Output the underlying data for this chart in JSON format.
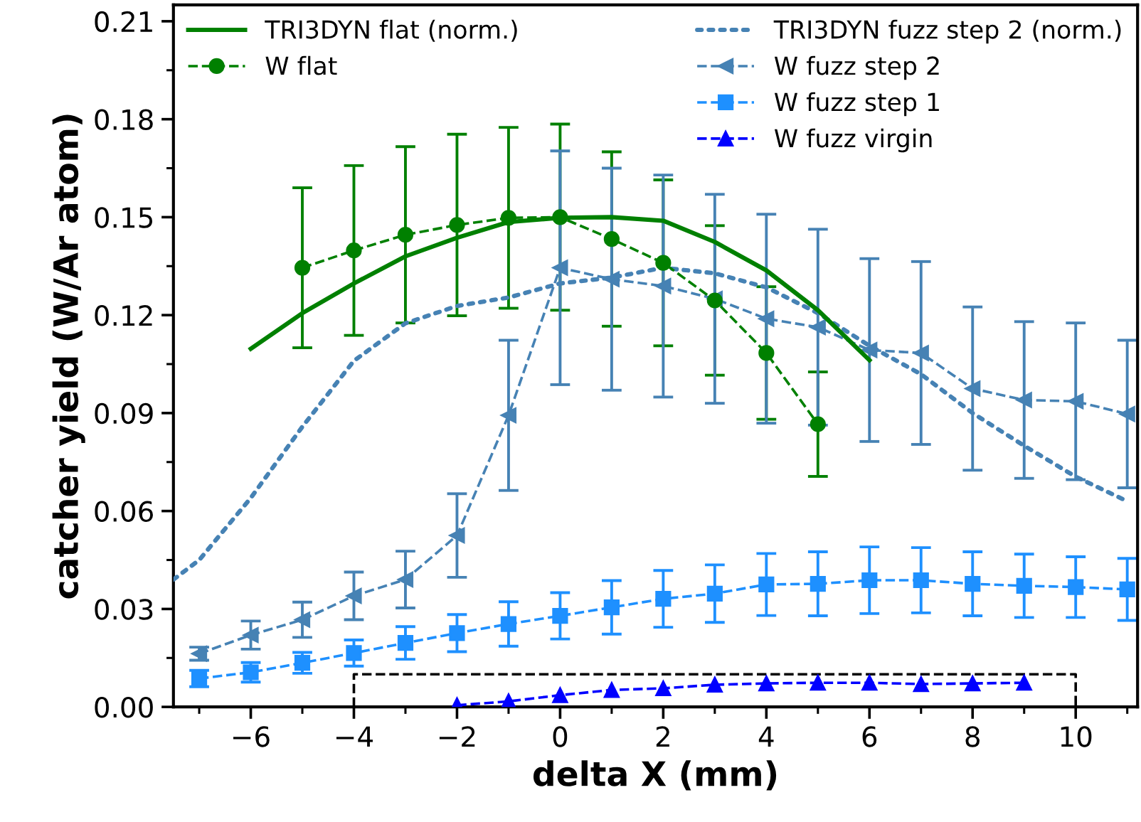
{
  "chart_data": {
    "type": "line",
    "xlabel": "delta X (mm)",
    "ylabel": "catcher yield (W/Ar atom)",
    "xlim": [
      -7.5,
      11.2
    ],
    "ylim": [
      0,
      0.215
    ],
    "xticks": [
      {
        "value": -7,
        "label": null
      },
      {
        "value": -6,
        "label": "−6"
      },
      {
        "value": -5,
        "label": null
      },
      {
        "value": -4,
        "label": "−4"
      },
      {
        "value": -3,
        "label": null
      },
      {
        "value": -2,
        "label": "−2"
      },
      {
        "value": -1,
        "label": null
      },
      0,
      {
        "value": 1,
        "label": null
      },
      2,
      {
        "value": 3,
        "label": null
      },
      4,
      {
        "value": 5,
        "label": null
      },
      6,
      {
        "value": 7,
        "label": null
      },
      8,
      {
        "value": 9,
        "label": null
      },
      10,
      {
        "value": 11,
        "label": null
      }
    ],
    "yticks": [
      {
        "value": 0,
        "label": "0.00"
      },
      {
        "value": 0.015,
        "label": null
      },
      {
        "value": 0.03,
        "label": "0.03"
      },
      {
        "value": 0.045,
        "label": null
      },
      {
        "value": 0.06,
        "label": "0.06"
      },
      {
        "value": 0.075,
        "label": null
      },
      {
        "value": 0.09,
        "label": "0.09"
      },
      {
        "value": 0.105,
        "label": null
      },
      {
        "value": 0.12,
        "label": "0.12"
      },
      {
        "value": 0.135,
        "label": null
      },
      {
        "value": 0.15,
        "label": "0.15"
      },
      {
        "value": 0.165,
        "label": null
      },
      {
        "value": 0.18,
        "label": "0.18"
      },
      {
        "value": 0.195,
        "label": null
      },
      {
        "value": 0.21,
        "label": "0.21"
      }
    ],
    "grid": false,
    "legend": "top",
    "series": [
      {
        "name": "TRI3DYN flat (norm.)",
        "color": "#008000",
        "line_style": "solid",
        "marker": "none",
        "x": [
          -6,
          -5,
          -4,
          -3,
          -2,
          -1,
          0,
          1,
          2,
          3,
          4,
          5,
          6
        ],
        "values": [
          0.1097,
          0.1206,
          0.1297,
          0.138,
          0.1437,
          0.1485,
          0.1498,
          0.15,
          0.1489,
          0.1424,
          0.1337,
          0.1215,
          0.1062
        ]
      },
      {
        "name": "W flat",
        "color": "#008000",
        "line_style": "dashed",
        "marker": "circle",
        "x": [
          -5,
          -4,
          -3,
          -2,
          -1,
          0,
          1,
          2,
          3,
          4,
          5
        ],
        "values": [
          0.1345,
          0.1398,
          0.1446,
          0.1476,
          0.1498,
          0.15,
          0.1433,
          0.136,
          0.1245,
          0.1084,
          0.0866
        ],
        "errors": [
          0.0245,
          0.026,
          0.027,
          0.0278,
          0.0277,
          0.0285,
          0.0267,
          0.0254,
          0.0229,
          0.0203,
          0.016
        ]
      },
      {
        "name": "TRI3DYN fuzz step 2 (norm.)",
        "color": "#4682b4",
        "line_style": "dotted",
        "marker": "none",
        "x": [
          -7.5,
          -7,
          -6,
          -5,
          -4,
          -3,
          -2,
          -1,
          0,
          1,
          2,
          3,
          4,
          5,
          6,
          7,
          8,
          9,
          10,
          11
        ],
        "values": [
          0.039,
          0.045,
          0.064,
          0.0858,
          0.106,
          0.1175,
          0.1228,
          0.1254,
          0.1297,
          0.1315,
          0.1345,
          0.1328,
          0.1285,
          0.1206,
          0.1106,
          0.1019,
          0.09,
          0.08,
          0.0705,
          0.063
        ]
      },
      {
        "name": "W fuzz step 2",
        "color": "#4682b4",
        "line_style": "dashed",
        "marker": "triangle-left",
        "x": [
          -7,
          -6,
          -5,
          -4,
          -3,
          -2,
          -1,
          0,
          1,
          2,
          3,
          4,
          5,
          6,
          7,
          8,
          9,
          10,
          11
        ],
        "values": [
          0.0163,
          0.022,
          0.0267,
          0.034,
          0.039,
          0.0525,
          0.0893,
          0.1345,
          0.131,
          0.1289,
          0.125,
          0.1189,
          0.1163,
          0.1093,
          0.1084,
          0.0975,
          0.094,
          0.0936,
          0.0897
        ],
        "errors": [
          0.002,
          0.0043,
          0.0054,
          0.0073,
          0.0087,
          0.0128,
          0.023,
          0.0358,
          0.034,
          0.034,
          0.032,
          0.032,
          0.03,
          0.028,
          0.028,
          0.025,
          0.024,
          0.024,
          0.0226
        ]
      },
      {
        "name": "W fuzz step 1",
        "color": "#1e90ff",
        "line_style": "dashed",
        "marker": "square",
        "x": [
          -7,
          -6,
          -5,
          -4,
          -3,
          -2,
          -1,
          0,
          1,
          2,
          3,
          4,
          5,
          6,
          7,
          8,
          9,
          10,
          11
        ],
        "values": [
          0.0087,
          0.0106,
          0.0135,
          0.0165,
          0.0196,
          0.0226,
          0.0254,
          0.0279,
          0.0305,
          0.0331,
          0.0347,
          0.0375,
          0.0377,
          0.0388,
          0.0388,
          0.0377,
          0.0371,
          0.0367,
          0.036
        ],
        "errors": [
          0.0025,
          0.003,
          0.0032,
          0.004,
          0.005,
          0.0057,
          0.0068,
          0.0071,
          0.0082,
          0.0087,
          0.0088,
          0.0095,
          0.0098,
          0.0102,
          0.01,
          0.0098,
          0.0097,
          0.0093,
          0.0095
        ]
      },
      {
        "name": "W fuzz virgin",
        "color": "#0000ff",
        "line_style": "dashed",
        "marker": "triangle",
        "x": [
          -2,
          -1,
          0,
          1,
          2,
          3,
          4,
          5,
          6,
          7,
          8,
          9
        ],
        "values": [
          0.0005,
          0.0017,
          0.0036,
          0.0052,
          0.0057,
          0.0068,
          0.0072,
          0.0074,
          0.0074,
          0.007,
          0.0072,
          0.0074
        ]
      },
      {
        "color": "#000000",
        "line_style": "dashed",
        "marker": "none",
        "x": [
          -4,
          -4,
          10,
          10
        ],
        "values": [
          0,
          0.01,
          0.01,
          0
        ]
      }
    ]
  }
}
